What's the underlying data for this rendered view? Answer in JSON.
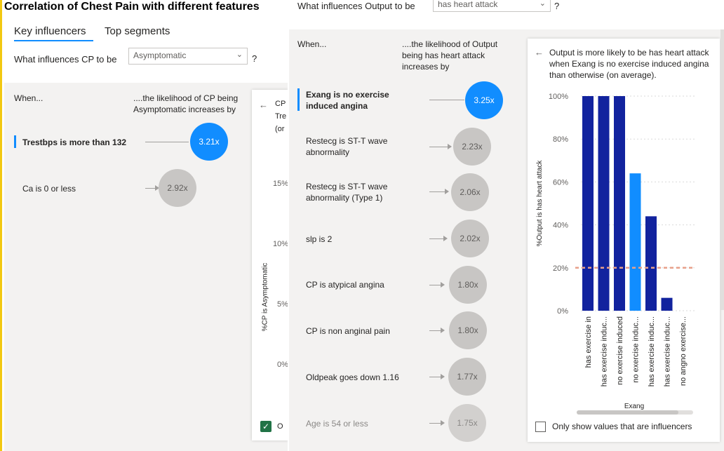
{
  "left": {
    "title": "Correlation of Chest Pain with different features",
    "tabs": [
      {
        "label": "Key influencers"
      },
      {
        "label": "Top segments"
      }
    ],
    "question_prefix": "What influences CP to be",
    "question_value": "Asymptomatic",
    "question_mark": "?",
    "col_when": "When...",
    "col_likelihood": "....the likelihood of CP being Asymptomatic increases by",
    "influencers": [
      {
        "label": "Trestbps is more than 132",
        "value": "3.21x"
      },
      {
        "label": "Ca is 0 or less",
        "value": "2.92x"
      }
    ],
    "card_lines": [
      "CP",
      "Tre",
      "(or"
    ],
    "yaxis_label": "%CP is Asymptomatic",
    "yticks": [
      "15%",
      "10%",
      "5%",
      "0%"
    ],
    "checkbox_label": "O"
  },
  "right": {
    "question_prefix": "What influences Output to be",
    "question_value": "has heart attack",
    "question_mark": "?",
    "col_when": "When...",
    "col_likelihood": "....the likelihood of Output being has heart attack increases by",
    "influencers": [
      {
        "label": "Exang is no exercise induced angina",
        "value": "3.25x"
      },
      {
        "label": "Restecg is ST-T wave abnormality",
        "value": "2.23x"
      },
      {
        "label": "Restecg is ST-T wave abnormality (Type 1)",
        "value": "2.06x"
      },
      {
        "label": "slp is 2",
        "value": "2.02x"
      },
      {
        "label": "CP is atypical angina",
        "value": "1.80x"
      },
      {
        "label": "CP is non anginal pain",
        "value": "1.80x"
      },
      {
        "label": "Oldpeak goes down 1.16",
        "value": "1.77x"
      },
      {
        "label": "Age is 54 or less",
        "value": "1.75x"
      }
    ],
    "detail_text": "Output is more likely to be has heart attack when Exang is no exercise induced angina than otherwise (on average).",
    "checkbox_label": "Only show values that are influencers"
  },
  "colors": {
    "accent": "#118dff",
    "bar_dark": "#12239e",
    "reference_line": "#e8a08a",
    "circle_gray": "#c8c6c4"
  },
  "chart_data": {
    "type": "bar",
    "ylabel": "%Output is has heart attack",
    "xlabel": "Exang",
    "ylim": [
      0,
      100
    ],
    "yticks": [
      "0%",
      "20%",
      "40%",
      "60%",
      "80%",
      "100%"
    ],
    "categories": [
      "has exercise in",
      "has exercise induc...",
      "no exercise induced",
      "no exercise induc...",
      "has exercise induc...",
      "has exercise induc...",
      "no angno exercise..."
    ],
    "values": [
      100,
      100,
      100,
      64,
      44,
      6,
      0
    ],
    "highlight_index": 3,
    "reference_value": 20
  }
}
